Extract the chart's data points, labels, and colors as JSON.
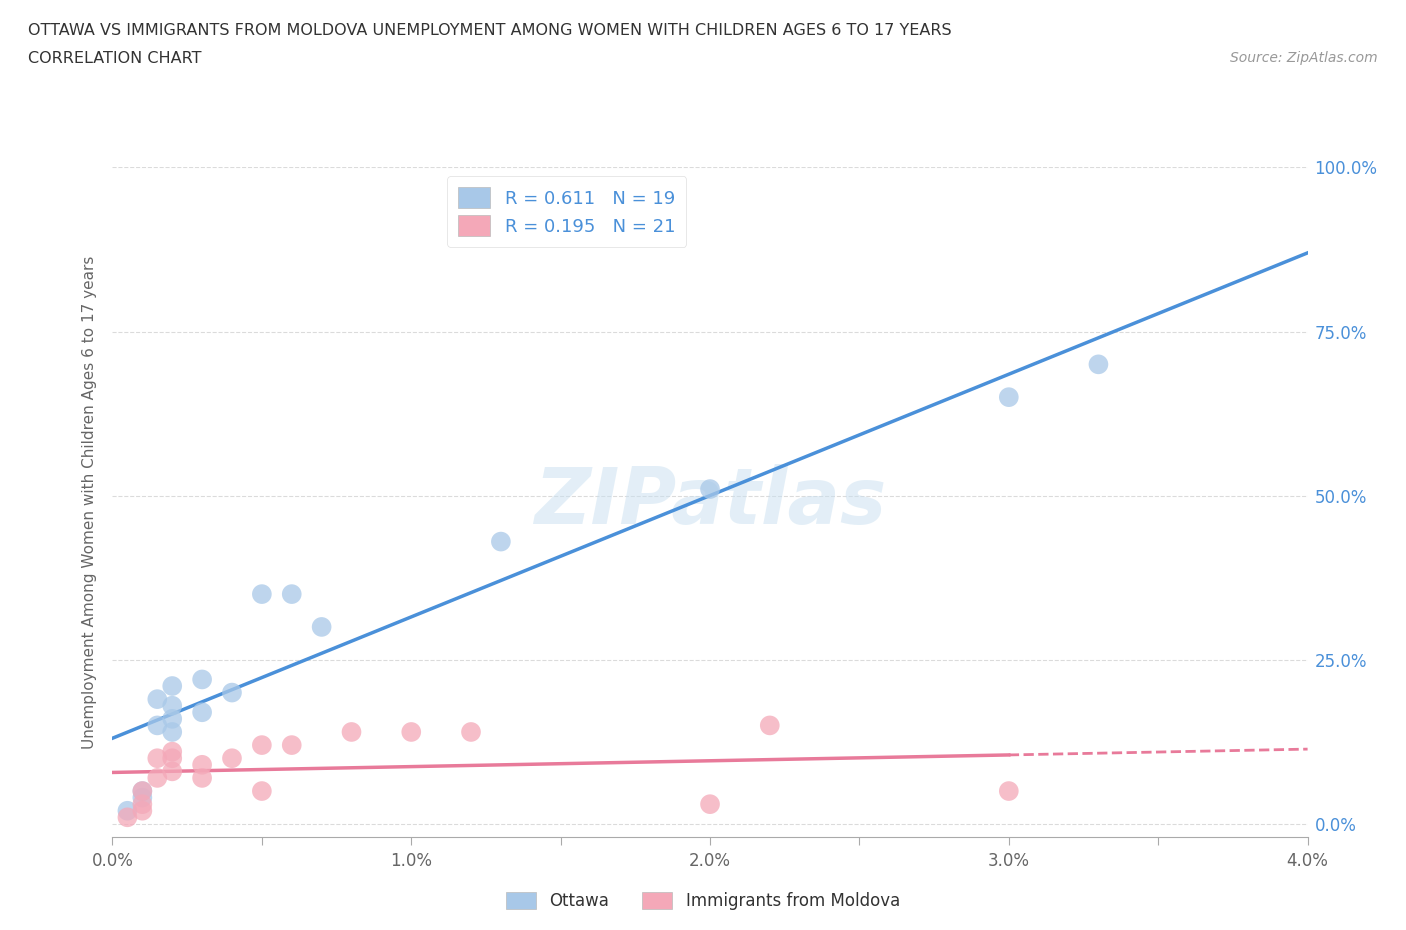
{
  "title_line1": "OTTAWA VS IMMIGRANTS FROM MOLDOVA UNEMPLOYMENT AMONG WOMEN WITH CHILDREN AGES 6 TO 17 YEARS",
  "title_line2": "CORRELATION CHART",
  "source": "Source: ZipAtlas.com",
  "ylabel": "Unemployment Among Women with Children Ages 6 to 17 years",
  "xlim": [
    0.0,
    0.04
  ],
  "ylim": [
    -0.02,
    1.0
  ],
  "xticks": [
    0.0,
    0.005,
    0.01,
    0.015,
    0.02,
    0.025,
    0.03,
    0.035,
    0.04
  ],
  "xtick_labels_major": {
    "0.0": "0.0%",
    "0.01": "1.0%",
    "0.02": "2.0%",
    "0.03": "3.0%",
    "0.04": "4.0%"
  },
  "yticks": [
    0.0,
    0.25,
    0.5,
    0.75,
    1.0
  ],
  "ytick_labels": [
    "0.0%",
    "25.0%",
    "50.0%",
    "75.0%",
    "100.0%"
  ],
  "ottawa_color": "#a8c8e8",
  "moldova_color": "#f4a8b8",
  "ottawa_line_color": "#4a90d9",
  "moldova_line_color": "#e87a9a",
  "right_axis_color": "#4a90d9",
  "legend_labels": [
    "Ottawa",
    "Immigrants from Moldova"
  ],
  "R_ottawa": 0.611,
  "N_ottawa": 19,
  "R_moldova": 0.195,
  "N_moldova": 21,
  "ottawa_x": [
    0.0005,
    0.001,
    0.001,
    0.0015,
    0.0015,
    0.002,
    0.002,
    0.002,
    0.002,
    0.003,
    0.003,
    0.004,
    0.005,
    0.006,
    0.007,
    0.013,
    0.02,
    0.03,
    0.033
  ],
  "ottawa_y": [
    0.02,
    0.04,
    0.05,
    0.15,
    0.19,
    0.14,
    0.16,
    0.18,
    0.21,
    0.17,
    0.22,
    0.2,
    0.35,
    0.35,
    0.3,
    0.43,
    0.51,
    0.65,
    0.7
  ],
  "moldova_x": [
    0.0005,
    0.001,
    0.001,
    0.001,
    0.0015,
    0.0015,
    0.002,
    0.002,
    0.002,
    0.003,
    0.003,
    0.004,
    0.005,
    0.005,
    0.006,
    0.008,
    0.01,
    0.012,
    0.02,
    0.022,
    0.03
  ],
  "moldova_y": [
    0.01,
    0.02,
    0.03,
    0.05,
    0.07,
    0.1,
    0.08,
    0.1,
    0.11,
    0.07,
    0.09,
    0.1,
    0.05,
    0.12,
    0.12,
    0.14,
    0.14,
    0.14,
    0.03,
    0.15,
    0.05
  ],
  "watermark_text": "ZIPatlas",
  "background_color": "#ffffff",
  "grid_color": "#cccccc"
}
